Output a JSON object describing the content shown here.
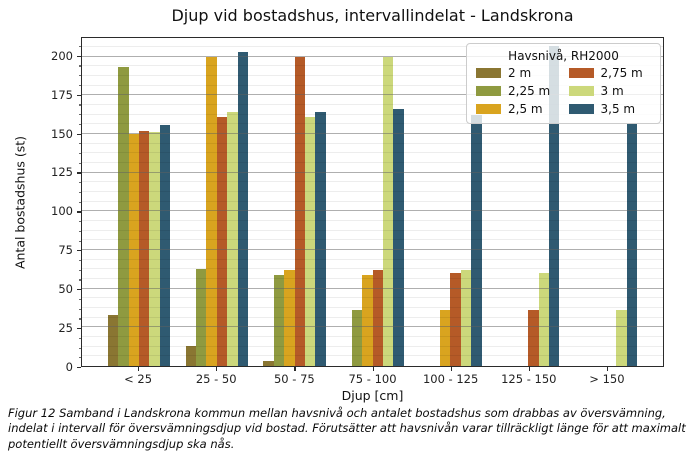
{
  "chart_data": {
    "type": "bar",
    "title": "Djup vid bostadshus, intervallindelat - Landskrona",
    "xlabel": "Djup [cm]",
    "ylabel": "Antal bostadshus (st)",
    "categories": [
      "< 25",
      "25 - 50",
      "50 - 75",
      "75 - 100",
      "100 - 125",
      "125 - 150",
      "> 150"
    ],
    "series": [
      {
        "name": "2 m",
        "color": "#8a7632",
        "values": [
          33,
          13,
          3,
          0,
          0,
          0,
          0
        ]
      },
      {
        "name": "2,25 m",
        "color": "#8f9a40",
        "values": [
          193,
          63,
          59,
          36,
          0,
          0,
          0
        ]
      },
      {
        "name": "2,5 m",
        "color": "#d9a41f",
        "values": [
          150,
          200,
          62,
          59,
          36,
          0,
          0
        ]
      },
      {
        "name": "2,75 m",
        "color": "#b55a27",
        "values": [
          152,
          161,
          200,
          62,
          60,
          36,
          0
        ]
      },
      {
        "name": "3 m",
        "color": "#ccd87b",
        "values": [
          151,
          164,
          161,
          200,
          62,
          60,
          36
        ]
      },
      {
        "name": "3,5 m",
        "color": "#2f5a71",
        "values": [
          156,
          203,
          164,
          166,
          162,
          207,
          157
        ]
      }
    ],
    "ylim": [
      0,
      212
    ],
    "yticks": [
      0,
      25,
      50,
      75,
      100,
      125,
      150,
      175,
      200
    ],
    "minor_grid_step": 6.25,
    "grid": "horizontal major and minor gridlines drawn over bars",
    "legend": {
      "title": "Havsnivå, RH2000",
      "position": "upper right",
      "columns": 2
    }
  },
  "caption": "Figur 12 Samband i Landskrona kommun mellan havsnivå och antalet bostadshus som drabbas av översvämning, indelat i intervall för översvämningsdjup vid bostad. Förutsätter att havsnivån varar tillräckligt länge för att maximalt potentiellt översvämningsdjup ska nås."
}
